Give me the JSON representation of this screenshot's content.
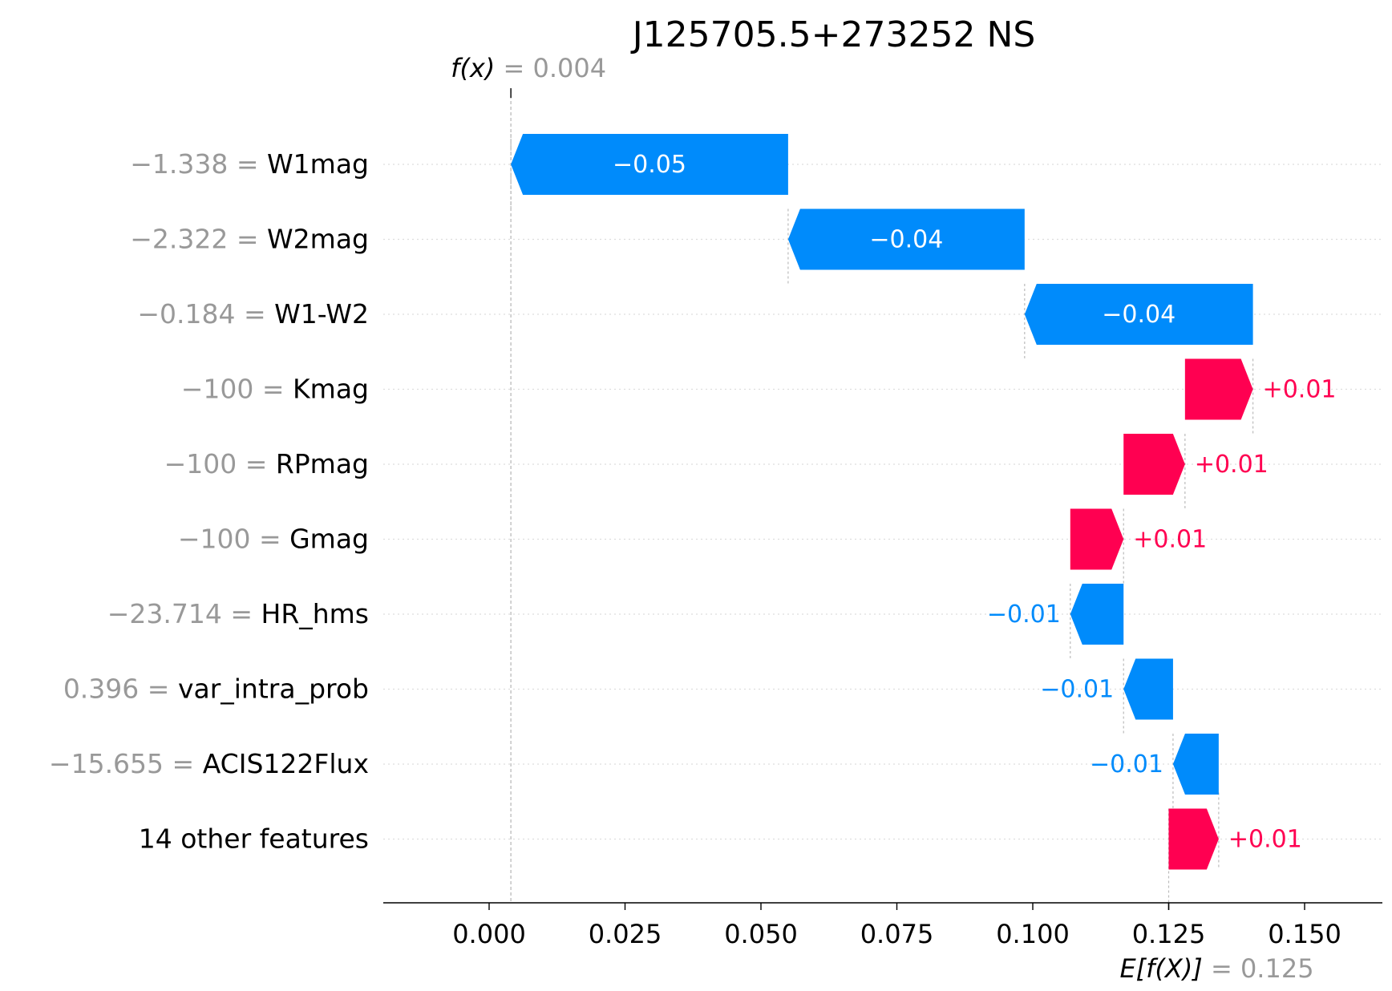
{
  "chart_data": {
    "type": "waterfall",
    "title": "J125705.5+273252 NS",
    "fx_label": "f(x)",
    "fx_value": "0.004",
    "fx_value_num": 0.004,
    "ex_label": "E[f(X)]",
    "ex_value": "0.125",
    "ex_value_num": 0.125,
    "xlim": [
      -0.0235,
      0.16
    ],
    "x_ticks": [
      0.0,
      0.025,
      0.05,
      0.075,
      0.1,
      0.125,
      0.15
    ],
    "x_tick_labels": [
      "0.000",
      "0.025",
      "0.050",
      "0.075",
      "0.100",
      "0.125",
      "0.150"
    ],
    "colors": {
      "positive": "#ff0051",
      "negative": "#008bfb",
      "feature_value": "#999999",
      "feature_name": "#000000"
    },
    "rows": [
      {
        "value": "−1.338",
        "feature": "W1mag",
        "contribution": -0.051,
        "start": 0.055,
        "end": 0.004,
        "label": "−0.05"
      },
      {
        "value": "−2.322",
        "feature": "W2mag",
        "contribution": -0.044,
        "start": 0.0985,
        "end": 0.055,
        "label": "−0.04"
      },
      {
        "value": "−0.184",
        "feature": "W1-W2",
        "contribution": -0.042,
        "start": 0.1405,
        "end": 0.0985,
        "label": "−0.04"
      },
      {
        "value": "−100",
        "feature": "Kmag",
        "contribution": 0.0125,
        "start": 0.128,
        "end": 0.1405,
        "label": "+0.01"
      },
      {
        "value": "−100",
        "feature": "RPmag",
        "contribution": 0.0113,
        "start": 0.1167,
        "end": 0.128,
        "label": "+0.01"
      },
      {
        "value": "−100",
        "feature": "Gmag",
        "contribution": 0.0098,
        "start": 0.1069,
        "end": 0.1167,
        "label": "+0.01"
      },
      {
        "value": "−23.714",
        "feature": "HR_hms",
        "contribution": -0.0098,
        "start": 0.1167,
        "end": 0.1069,
        "label": "−0.01"
      },
      {
        "value": "0.396",
        "feature": "var_intra_prob",
        "contribution": -0.0091,
        "start": 0.1258,
        "end": 0.1167,
        "label": "−0.01"
      },
      {
        "value": "−15.655",
        "feature": "ACIS122Flux",
        "contribution": -0.0084,
        "start": 0.1342,
        "end": 0.1258,
        "label": "−0.01"
      },
      {
        "value": "",
        "feature": "14 other features",
        "contribution": 0.0092,
        "start": 0.125,
        "end": 0.1342,
        "label": "+0.01"
      }
    ]
  }
}
